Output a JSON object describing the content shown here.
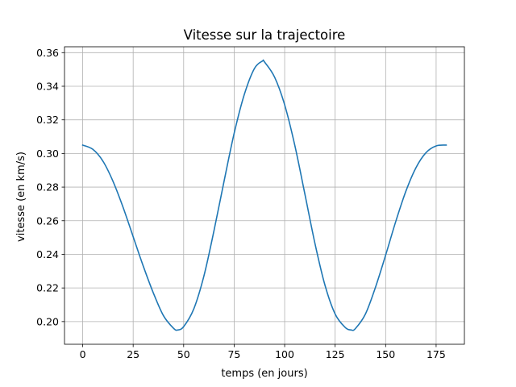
{
  "chart_data": {
    "type": "line",
    "title": "Vitesse sur la trajectoire",
    "xlabel": "temps (en jours)",
    "ylabel": "vitesse (en km/s)",
    "xlim": [
      -9,
      189
    ],
    "ylim": [
      0.1865,
      0.3635
    ],
    "xticks": [
      0,
      25,
      50,
      75,
      100,
      125,
      150,
      175
    ],
    "xtick_labels": [
      "0",
      "25",
      "50",
      "75",
      "100",
      "125",
      "150",
      "175"
    ],
    "yticks": [
      0.2,
      0.22,
      0.24,
      0.26,
      0.28,
      0.3,
      0.32,
      0.34,
      0.36
    ],
    "ytick_labels": [
      "0.20",
      "0.22",
      "0.24",
      "0.26",
      "0.28",
      "0.30",
      "0.32",
      "0.34",
      "0.36"
    ],
    "grid": true,
    "series": [
      {
        "color": "#1f77b4",
        "x": [
          0,
          5,
          10,
          15,
          20,
          25,
          30,
          35,
          40,
          45,
          47,
          50,
          55,
          60,
          65,
          70,
          75,
          80,
          85,
          89,
          90,
          95,
          100,
          105,
          110,
          115,
          120,
          125,
          130,
          133,
          135,
          140,
          145,
          150,
          155,
          160,
          165,
          170,
          175,
          180
        ],
        "y": [
          0.305,
          0.3025,
          0.2955,
          0.2835,
          0.268,
          0.2505,
          0.233,
          0.217,
          0.2035,
          0.196,
          0.195,
          0.197,
          0.2075,
          0.227,
          0.254,
          0.2835,
          0.312,
          0.335,
          0.3505,
          0.355,
          0.3545,
          0.3455,
          0.329,
          0.305,
          0.276,
          0.2465,
          0.2215,
          0.2045,
          0.1965,
          0.195,
          0.1958,
          0.2045,
          0.2205,
          0.2395,
          0.2595,
          0.2775,
          0.2915,
          0.3005,
          0.3045,
          0.305
        ]
      }
    ]
  }
}
